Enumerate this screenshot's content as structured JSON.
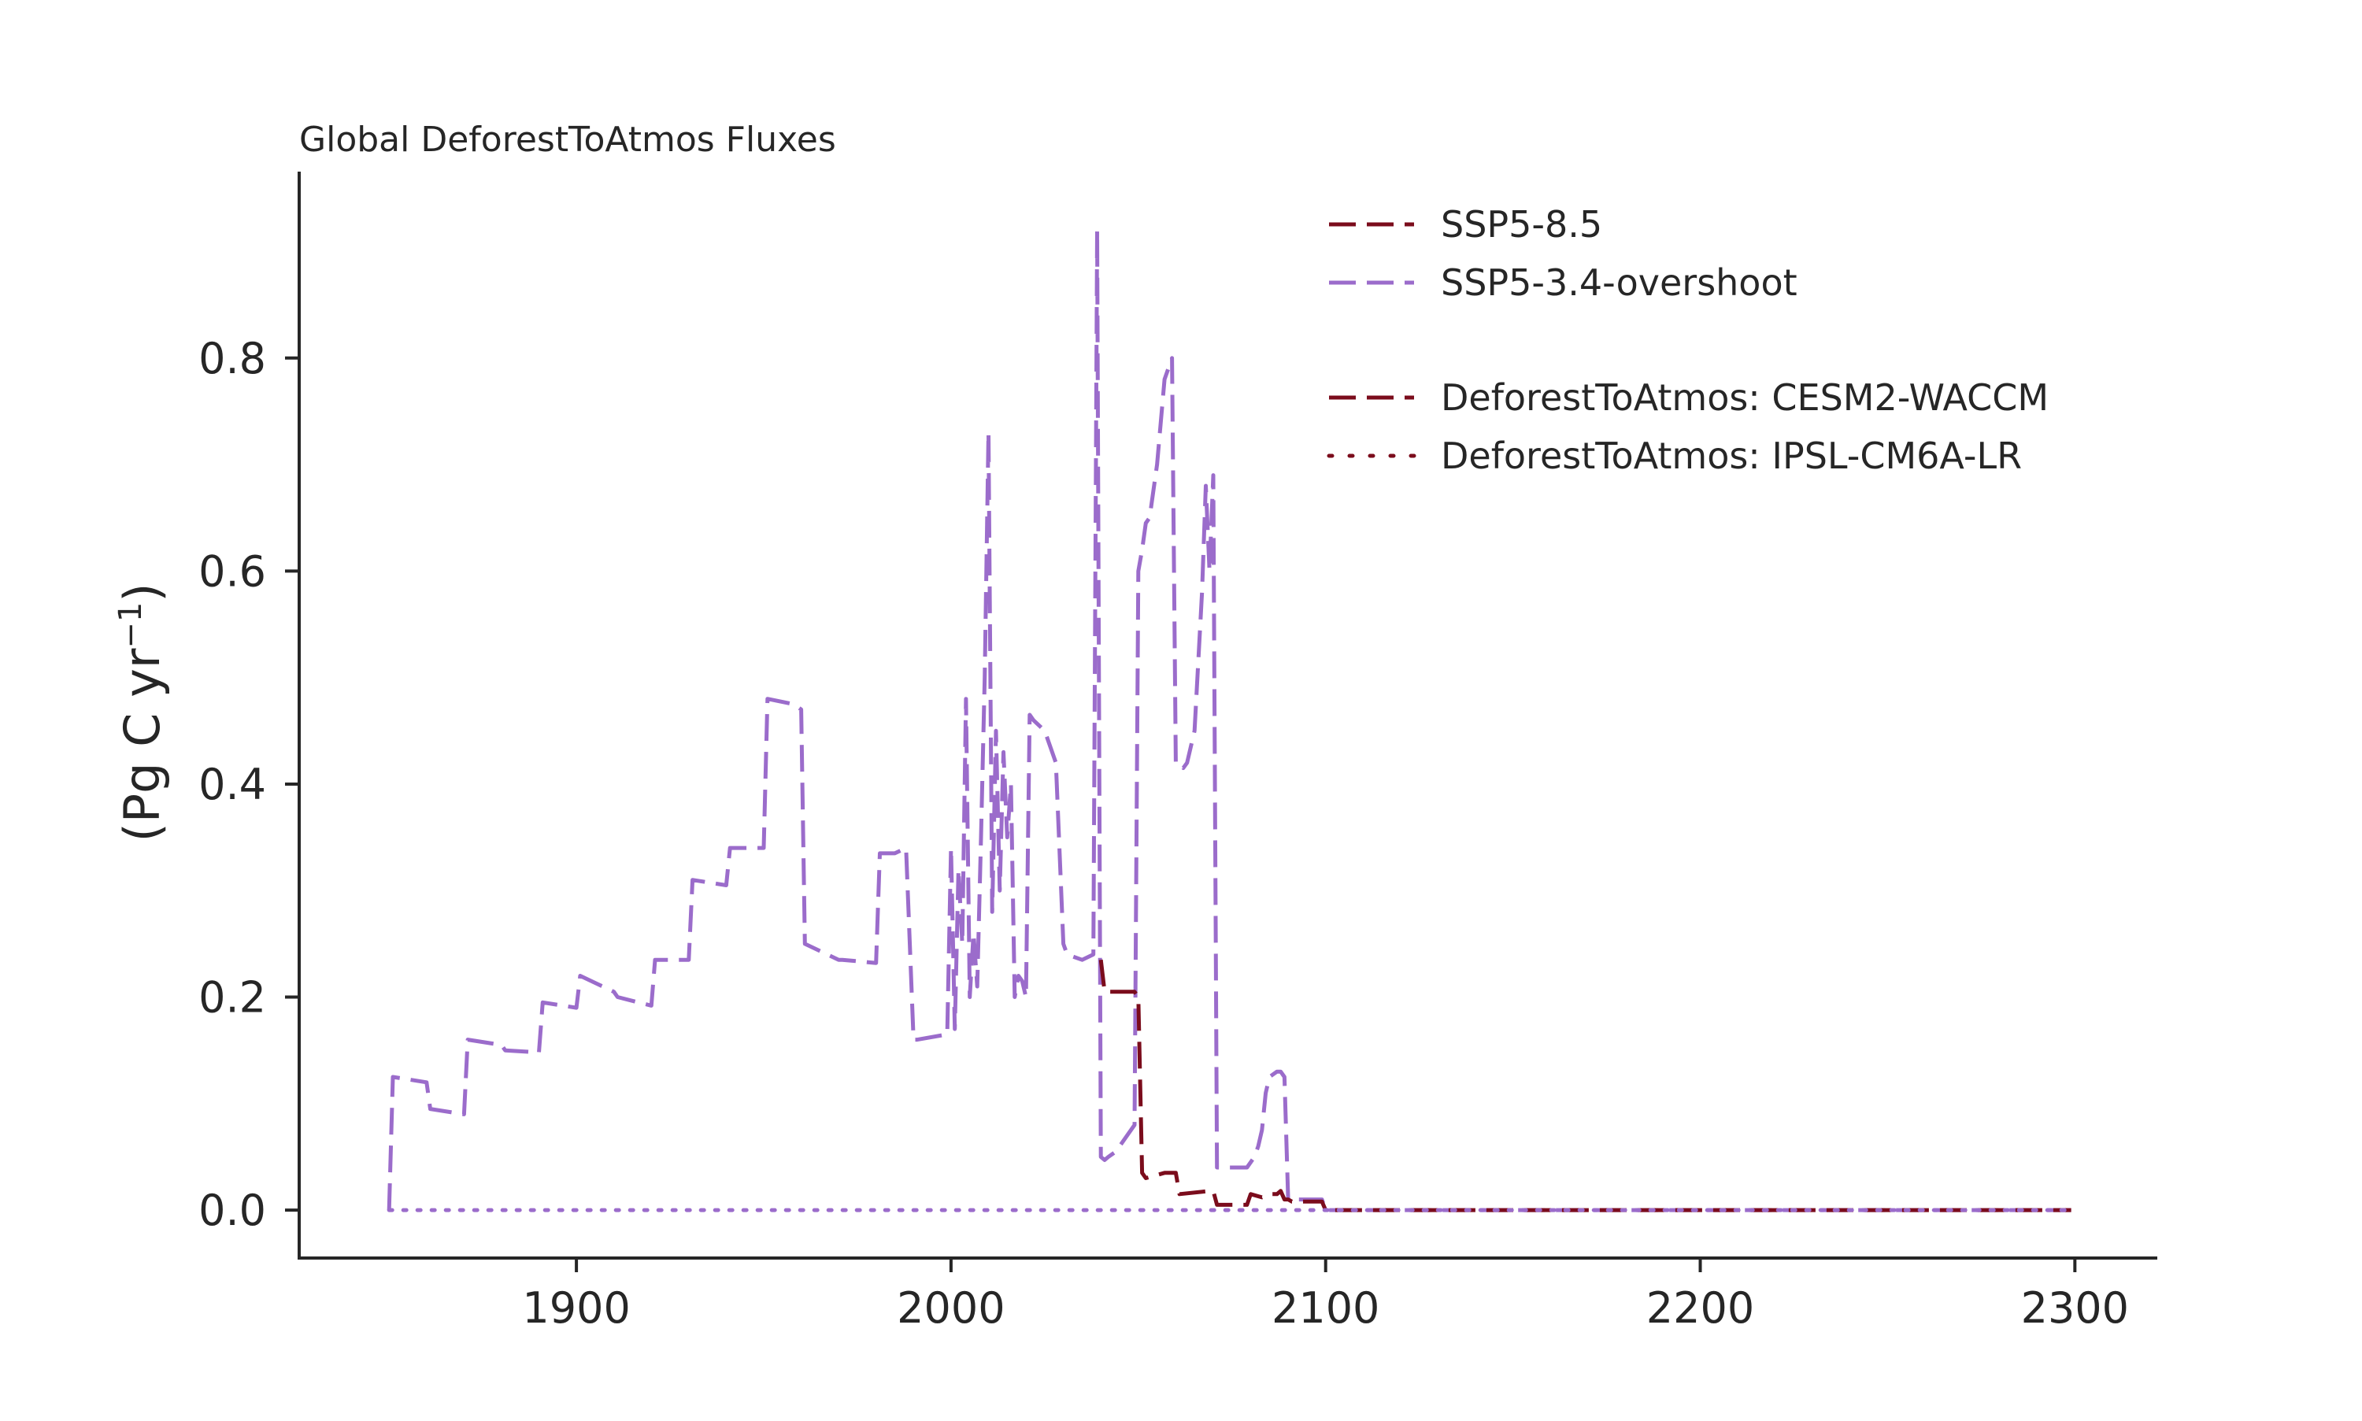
{
  "chart_data": {
    "type": "line",
    "title": "Global DeforestToAtmos Fluxes",
    "xlabel": "",
    "ylabel": "(Pg C yr",
    "ylabel_sup": "−1",
    "ylabel_close": ")",
    "xlim": [
      1826,
      2322
    ],
    "ylim": [
      -0.045,
      0.975
    ],
    "xticks": [
      1900,
      2000,
      2100,
      2200,
      2300
    ],
    "xtick_labels": [
      "1900",
      "2000",
      "2100",
      "2200",
      "2300"
    ],
    "yticks": [
      0.0,
      0.2,
      0.4,
      0.6,
      0.8
    ],
    "ytick_labels": [
      "0.0",
      "0.2",
      "0.4",
      "0.6",
      "0.8"
    ],
    "grid": false,
    "legend_position": "top-right",
    "legend": {
      "scenarios": [
        {
          "label": "SSP5-8.5",
          "color": "#7b0c1c",
          "style": "dashed"
        },
        {
          "label": "SSP5-3.4-overshoot",
          "color": "#9b6ccb",
          "style": "dashed"
        }
      ],
      "models": [
        {
          "label": "DeforestToAtmos: CESM2-WACCM",
          "color": "#7b0c1c",
          "style": "dashed"
        },
        {
          "label": "DeforestToAtmos: IPSL-CM6A-LR",
          "color": "#7b0c1c",
          "style": "dotted"
        }
      ]
    },
    "series": [
      {
        "color": "#9b6ccb",
        "style": "dashed",
        "x": [
          1850,
          1851,
          1860,
          1861,
          1870,
          1871,
          1880,
          1881,
          1890,
          1891,
          1900,
          1901,
          1910,
          1911,
          1920,
          1921,
          1930,
          1931,
          1940,
          1941,
          1950,
          1951,
          1958,
          1960,
          1961,
          1970,
          1971,
          1980,
          1981,
          1985,
          1988,
          1990,
          1991,
          1999,
          2000,
          2001,
          2002,
          2003,
          2004,
          2005,
          2006,
          2007,
          2008,
          2009,
          2010,
          2011,
          2012,
          2013,
          2014,
          2015,
          2016,
          2017,
          2018,
          2019,
          2020,
          2021,
          2022,
          2025,
          2028,
          2030,
          2031,
          2035,
          2038,
          2039,
          2040,
          2041,
          2042,
          2044,
          2047,
          2049,
          2050,
          2051,
          2052,
          2053,
          2055,
          2057,
          2059,
          2060,
          2061,
          2062,
          2063,
          2065,
          2067,
          2068,
          2069,
          2070,
          2071,
          2072,
          2075,
          2079,
          2081,
          2082,
          2083,
          2084,
          2085,
          2087,
          2088,
          2089,
          2090,
          2091,
          2095,
          2099,
          2100,
          2101,
          2150,
          2200,
          2250,
          2299
        ],
        "y": [
          0.0,
          0.125,
          0.12,
          0.095,
          0.09,
          0.16,
          0.155,
          0.15,
          0.148,
          0.195,
          0.19,
          0.22,
          0.205,
          0.2,
          0.192,
          0.235,
          0.235,
          0.31,
          0.305,
          0.34,
          0.34,
          0.48,
          0.475,
          0.47,
          0.25,
          0.235,
          0.235,
          0.232,
          0.335,
          0.335,
          0.34,
          0.16,
          0.16,
          0.165,
          0.34,
          0.17,
          0.32,
          0.25,
          0.48,
          0.2,
          0.26,
          0.21,
          0.35,
          0.5,
          0.73,
          0.28,
          0.45,
          0.3,
          0.43,
          0.35,
          0.4,
          0.2,
          0.22,
          0.215,
          0.2,
          0.465,
          0.46,
          0.45,
          0.42,
          0.25,
          0.24,
          0.235,
          0.24,
          0.92,
          0.05,
          0.047,
          0.05,
          0.055,
          0.07,
          0.08,
          0.6,
          0.62,
          0.645,
          0.65,
          0.7,
          0.78,
          0.8,
          0.42,
          0.42,
          0.415,
          0.42,
          0.45,
          0.58,
          0.68,
          0.6,
          0.69,
          0.04,
          0.04,
          0.04,
          0.04,
          0.05,
          0.06,
          0.075,
          0.11,
          0.125,
          0.13,
          0.13,
          0.125,
          0.01,
          0.01,
          0.01,
          0.01,
          0.0,
          0.0,
          0.0,
          0.0,
          0.0,
          0.0
        ]
      },
      {
        "color": "#7b0c1c",
        "style": "dashed",
        "x": [
          2040,
          2041,
          2049,
          2050,
          2051,
          2052,
          2057,
          2058,
          2059,
          2060,
          2061,
          2069,
          2070,
          2071,
          2078,
          2079,
          2080,
          2083,
          2085,
          2087,
          2088,
          2089,
          2090,
          2091,
          2095,
          2099,
          2100,
          2101,
          2150,
          2200,
          2250,
          2299
        ],
        "y": [
          0.235,
          0.205,
          0.205,
          0.2,
          0.035,
          0.03,
          0.035,
          0.035,
          0.035,
          0.035,
          0.015,
          0.018,
          0.018,
          0.005,
          0.005,
          0.005,
          0.015,
          0.012,
          0.015,
          0.015,
          0.018,
          0.01,
          0.01,
          0.008,
          0.008,
          0.008,
          0.0,
          0.0,
          0.0,
          0.0,
          0.0,
          0.0
        ]
      },
      {
        "color": "#9b6ccb",
        "style": "dotted",
        "x": [
          1850,
          2100,
          2299
        ],
        "y": [
          0.0,
          0.0,
          0.0
        ]
      }
    ]
  }
}
